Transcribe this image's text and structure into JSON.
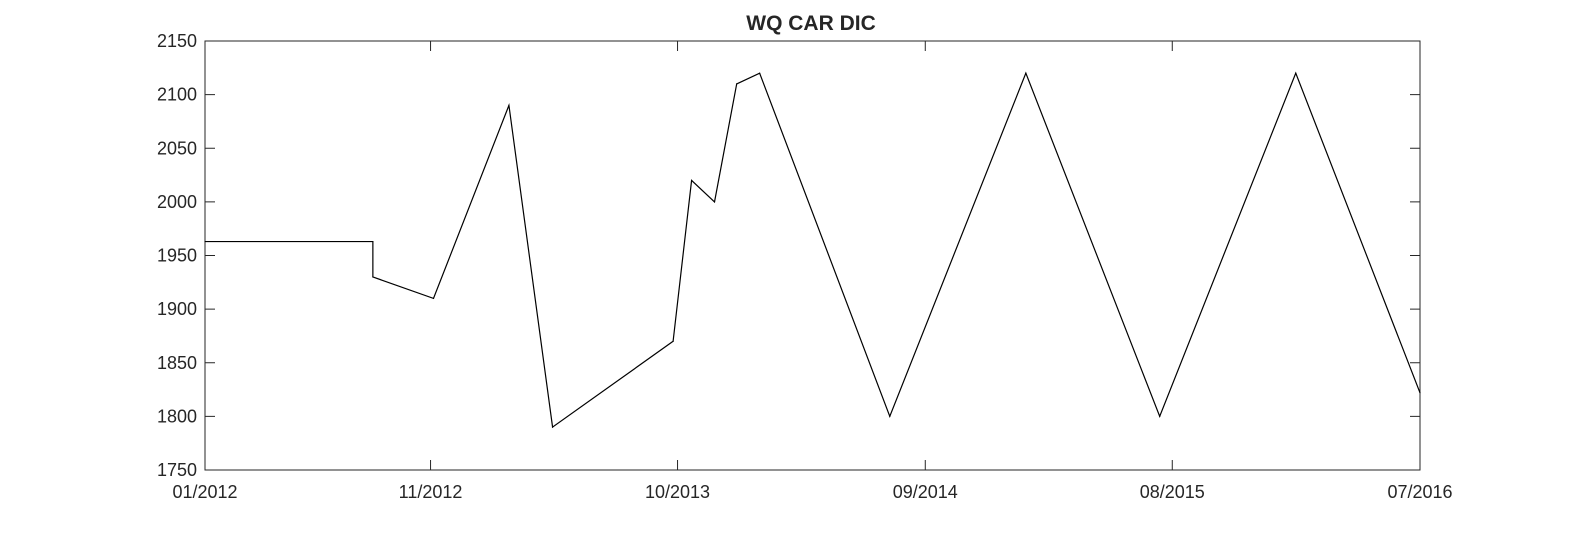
{
  "chart_data": {
    "type": "line",
    "title": "WQ CAR DIC",
    "xlabel": "",
    "ylabel": "",
    "x_ticks": [
      "01/2012",
      "11/2012",
      "10/2013",
      "09/2014",
      "08/2015",
      "07/2016"
    ],
    "x_tick_dates": [
      "2012-01-01",
      "2012-11-01",
      "2013-10-01",
      "2014-09-01",
      "2015-08-01",
      "2016-07-01"
    ],
    "xlim": [
      "2012-01-01",
      "2016-07-01"
    ],
    "y_ticks": [
      1750,
      1800,
      1850,
      1900,
      1950,
      2000,
      2050,
      2100,
      2150
    ],
    "ylim": [
      1750,
      2150
    ],
    "grid": false,
    "series": [
      {
        "color": "#000000",
        "points": [
          {
            "x": "2012-01-01",
            "y": 1963
          },
          {
            "x": "2012-08-15",
            "y": 1963
          },
          {
            "x": "2012-08-15",
            "y": 1930
          },
          {
            "x": "2012-11-05",
            "y": 1910
          },
          {
            "x": "2013-02-15",
            "y": 2090
          },
          {
            "x": "2013-04-15",
            "y": 1790
          },
          {
            "x": "2013-09-25",
            "y": 1870
          },
          {
            "x": "2013-10-20",
            "y": 2020
          },
          {
            "x": "2013-11-20",
            "y": 2000
          },
          {
            "x": "2013-12-20",
            "y": 2110
          },
          {
            "x": "2014-01-20",
            "y": 2120
          },
          {
            "x": "2014-07-15",
            "y": 1800
          },
          {
            "x": "2015-01-15",
            "y": 2120
          },
          {
            "x": "2015-07-15",
            "y": 1800
          },
          {
            "x": "2016-01-15",
            "y": 2120
          },
          {
            "x": "2016-07-01",
            "y": 1822
          }
        ]
      }
    ]
  }
}
